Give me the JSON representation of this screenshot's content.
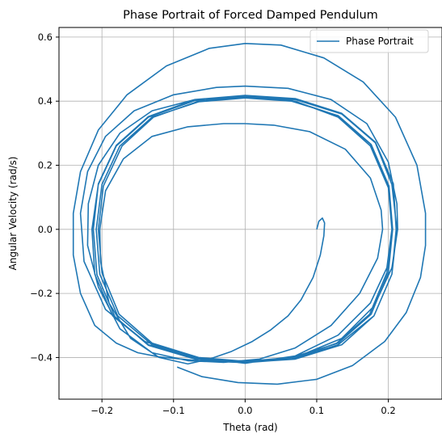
{
  "chart_data": {
    "type": "line",
    "title": "Phase Portrait of Forced Damped Pendulum",
    "xlabel": "Theta (rad)",
    "ylabel": "Angular Velocity (rad/s)",
    "xlim": [
      -0.26,
      0.275
    ],
    "ylim": [
      -0.53,
      0.63
    ],
    "xticks": [
      -0.2,
      -0.1,
      0.0,
      0.1,
      0.2
    ],
    "xtick_labels": [
      "−0.2",
      "−0.1",
      "0.0",
      "0.1",
      "0.2"
    ],
    "yticks": [
      -0.4,
      -0.2,
      0.0,
      0.2,
      0.4,
      0.6
    ],
    "ytick_labels": [
      "−0.4",
      "−0.2",
      "0.0",
      "0.2",
      "0.4",
      "0.6"
    ],
    "grid": true,
    "legend_position": "top-right",
    "colors": {
      "series": "#1f77b4",
      "grid": "#b0b0b0",
      "axes": "#000000"
    },
    "series": [
      {
        "name": "Phase Portrait",
        "points": [
          [
            0.1,
            0.0
          ],
          [
            0.103,
            0.025
          ],
          [
            0.108,
            0.035
          ],
          [
            0.111,
            0.02
          ],
          [
            0.11,
            -0.02
          ],
          [
            0.105,
            -0.08
          ],
          [
            0.095,
            -0.15
          ],
          [
            0.078,
            -0.22
          ],
          [
            0.06,
            -0.27
          ],
          [
            0.035,
            -0.315
          ],
          [
            0.01,
            -0.35
          ],
          [
            -0.02,
            -0.382
          ],
          [
            -0.05,
            -0.405
          ],
          [
            -0.08,
            -0.42
          ],
          [
            -0.12,
            -0.4
          ],
          [
            -0.16,
            -0.34
          ],
          [
            -0.19,
            -0.23
          ],
          [
            -0.202,
            -0.1
          ],
          [
            -0.203,
            0.0
          ],
          [
            -0.195,
            0.12
          ],
          [
            -0.17,
            0.22
          ],
          [
            -0.13,
            0.29
          ],
          [
            -0.08,
            0.32
          ],
          [
            -0.03,
            0.33
          ],
          [
            0.0,
            0.33
          ],
          [
            0.04,
            0.325
          ],
          [
            0.09,
            0.305
          ],
          [
            0.14,
            0.25
          ],
          [
            0.175,
            0.16
          ],
          [
            0.19,
            0.06
          ],
          [
            0.192,
            0.0
          ],
          [
            0.185,
            -0.09
          ],
          [
            0.16,
            -0.2
          ],
          [
            0.12,
            -0.3
          ],
          [
            0.07,
            -0.37
          ],
          [
            0.02,
            -0.405
          ],
          [
            -0.03,
            -0.415
          ],
          [
            -0.08,
            -0.41
          ],
          [
            -0.13,
            -0.385
          ],
          [
            -0.175,
            -0.31
          ],
          [
            -0.205,
            -0.18
          ],
          [
            -0.22,
            -0.05
          ],
          [
            -0.219,
            0.08
          ],
          [
            -0.205,
            0.2
          ],
          [
            -0.175,
            0.3
          ],
          [
            -0.13,
            0.37
          ],
          [
            -0.07,
            0.405
          ],
          [
            0.0,
            0.412
          ],
          [
            0.07,
            0.4
          ],
          [
            0.13,
            0.35
          ],
          [
            0.175,
            0.26
          ],
          [
            0.2,
            0.13
          ],
          [
            0.205,
            0.0
          ],
          [
            0.198,
            -0.12
          ],
          [
            0.175,
            -0.23
          ],
          [
            0.13,
            -0.33
          ],
          [
            0.07,
            -0.395
          ],
          [
            0.0,
            -0.418
          ],
          [
            -0.07,
            -0.4
          ],
          [
            -0.14,
            -0.35
          ],
          [
            -0.195,
            -0.25
          ],
          [
            -0.225,
            -0.1
          ],
          [
            -0.23,
            0.05
          ],
          [
            -0.22,
            0.18
          ],
          [
            -0.195,
            0.29
          ],
          [
            -0.155,
            0.37
          ],
          [
            -0.1,
            0.42
          ],
          [
            -0.04,
            0.443
          ],
          [
            0.0,
            0.447
          ],
          [
            0.06,
            0.44
          ],
          [
            0.12,
            0.405
          ],
          [
            0.17,
            0.33
          ],
          [
            0.2,
            0.21
          ],
          [
            0.212,
            0.08
          ],
          [
            0.213,
            0.0
          ],
          [
            0.205,
            -0.12
          ],
          [
            0.18,
            -0.24
          ],
          [
            0.135,
            -0.34
          ],
          [
            0.07,
            -0.4
          ],
          [
            0.0,
            -0.412
          ],
          [
            -0.07,
            -0.405
          ],
          [
            -0.135,
            -0.36
          ],
          [
            -0.185,
            -0.27
          ],
          [
            -0.21,
            -0.14
          ],
          [
            -0.214,
            0.0
          ],
          [
            -0.205,
            0.14
          ],
          [
            -0.18,
            0.26
          ],
          [
            -0.135,
            0.35
          ],
          [
            -0.07,
            0.402
          ],
          [
            0.0,
            0.415
          ],
          [
            0.07,
            0.405
          ],
          [
            0.135,
            0.36
          ],
          [
            0.182,
            0.27
          ],
          [
            0.205,
            0.14
          ],
          [
            0.212,
            0.0
          ],
          [
            0.205,
            -0.14
          ],
          [
            0.18,
            -0.27
          ],
          [
            0.135,
            -0.36
          ],
          [
            0.07,
            -0.405
          ],
          [
            0.0,
            -0.415
          ],
          [
            -0.07,
            -0.405
          ],
          [
            -0.135,
            -0.362
          ],
          [
            -0.182,
            -0.272
          ],
          [
            -0.207,
            -0.142
          ],
          [
            -0.212,
            0.0
          ],
          [
            -0.205,
            0.142
          ],
          [
            -0.18,
            0.262
          ],
          [
            -0.135,
            0.352
          ],
          [
            -0.07,
            0.405
          ],
          [
            0.0,
            0.418
          ],
          [
            0.07,
            0.408
          ],
          [
            0.135,
            0.362
          ],
          [
            0.182,
            0.272
          ],
          [
            0.207,
            0.142
          ],
          [
            0.211,
            0.0
          ],
          [
            0.205,
            -0.14
          ],
          [
            0.18,
            -0.27
          ],
          [
            0.13,
            -0.36
          ],
          [
            0.065,
            -0.405
          ],
          [
            0.0,
            -0.413
          ],
          [
            -0.065,
            -0.405
          ],
          [
            -0.13,
            -0.36
          ],
          [
            -0.178,
            -0.27
          ],
          [
            -0.203,
            -0.14
          ],
          [
            -0.208,
            0.0
          ],
          [
            -0.2,
            0.14
          ],
          [
            -0.175,
            0.26
          ],
          [
            -0.13,
            0.35
          ],
          [
            -0.065,
            0.398
          ],
          [
            0.0,
            0.41
          ],
          [
            0.065,
            0.4
          ],
          [
            0.13,
            0.355
          ],
          [
            0.176,
            0.265
          ],
          [
            0.201,
            0.135
          ],
          [
            0.206,
            0.0
          ],
          [
            0.2,
            -0.135
          ],
          [
            0.176,
            -0.265
          ],
          [
            0.13,
            -0.355
          ],
          [
            0.065,
            -0.4
          ],
          [
            0.0,
            -0.412
          ],
          [
            -0.065,
            -0.4
          ],
          [
            -0.13,
            -0.355
          ],
          [
            -0.176,
            -0.265
          ],
          [
            -0.2,
            -0.135
          ],
          [
            -0.205,
            0.0
          ],
          [
            -0.198,
            0.135
          ],
          [
            -0.172,
            0.26
          ],
          [
            -0.128,
            0.35
          ],
          [
            -0.065,
            0.4
          ],
          [
            0.0,
            0.413
          ],
          [
            0.065,
            0.402
          ],
          [
            0.128,
            0.356
          ],
          [
            0.175,
            0.266
          ],
          [
            0.2,
            0.135
          ],
          [
            0.205,
            0.0
          ],
          [
            0.198,
            -0.135
          ],
          [
            0.174,
            -0.265
          ],
          [
            0.128,
            -0.355
          ],
          [
            0.065,
            -0.405
          ],
          [
            0.0,
            -0.416
          ],
          [
            -0.065,
            -0.41
          ],
          [
            -0.12,
            -0.398
          ],
          [
            -0.15,
            -0.385
          ],
          [
            -0.18,
            -0.355
          ],
          [
            -0.21,
            -0.3
          ],
          [
            -0.23,
            -0.2
          ],
          [
            -0.24,
            -0.08
          ],
          [
            -0.24,
            0.05
          ],
          [
            -0.23,
            0.18
          ],
          [
            -0.205,
            0.31
          ],
          [
            -0.165,
            0.42
          ],
          [
            -0.11,
            0.51
          ],
          [
            -0.05,
            0.565
          ],
          [
            0.0,
            0.58
          ],
          [
            0.05,
            0.575
          ],
          [
            0.11,
            0.535
          ],
          [
            0.165,
            0.46
          ],
          [
            0.21,
            0.35
          ],
          [
            0.24,
            0.2
          ],
          [
            0.252,
            0.05
          ],
          [
            0.252,
            -0.05
          ],
          [
            0.245,
            -0.15
          ],
          [
            0.225,
            -0.26
          ],
          [
            0.195,
            -0.35
          ],
          [
            0.15,
            -0.425
          ],
          [
            0.1,
            -0.468
          ],
          [
            0.045,
            -0.483
          ],
          [
            -0.01,
            -0.478
          ],
          [
            -0.06,
            -0.46
          ],
          [
            -0.095,
            -0.43
          ]
        ]
      }
    ]
  }
}
